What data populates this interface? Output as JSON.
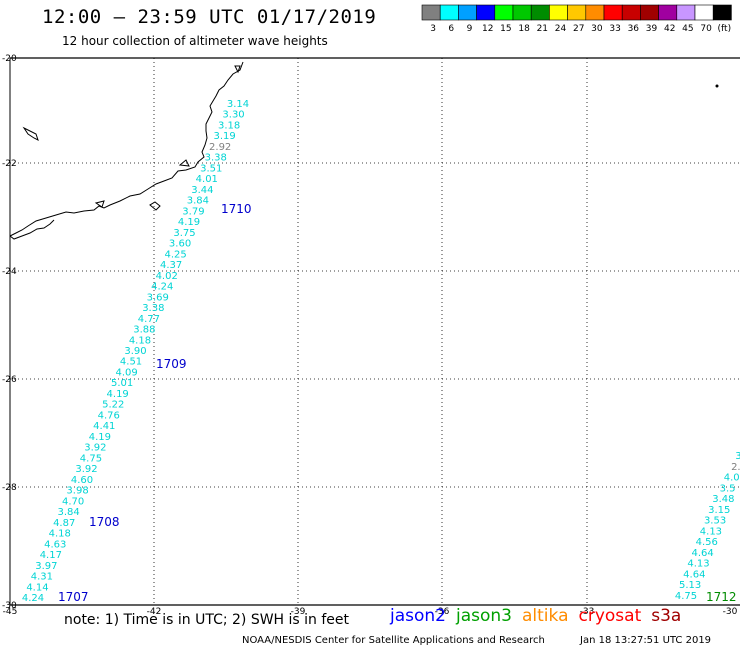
{
  "header": {
    "title": "12:00 — 23:59 UTC 01/17/2019",
    "subtitle": "12 hour collection of altimeter wave heights"
  },
  "legend": {
    "colors": [
      "#808080",
      "#00ffff",
      "#00a0ff",
      "#0000ff",
      "#00ff00",
      "#00c800",
      "#008c00",
      "#ffff00",
      "#ffc800",
      "#ff8c00",
      "#ff0000",
      "#c80000",
      "#a00000",
      "#a000a0",
      "#c896ff",
      "#ffffff",
      "#000000"
    ],
    "labels": [
      "3",
      "6",
      "9",
      "12",
      "15",
      "18",
      "21",
      "24",
      "27",
      "30",
      "33",
      "36",
      "39",
      "42",
      "45",
      "70",
      "(ft)"
    ]
  },
  "axes": {
    "lat_labels": [
      "-20",
      "-22",
      "-24",
      "-26",
      "-28",
      "-30"
    ],
    "lon_labels": [
      "-45",
      "-42",
      "-39",
      "-36",
      "-33",
      "-30"
    ]
  },
  "tracks": [
    {
      "name": "main-track",
      "color": "#00d4d4",
      "values": [
        "3.14",
        "3.30",
        "3.18",
        "3.19",
        "2.92",
        "3.38",
        "3.51",
        "4.01",
        "3.44",
        "3.84",
        "3.79",
        "4.19",
        "3.75",
        "3.60",
        "4.25",
        "4.37",
        "4.02",
        "4.24",
        "3.69",
        "3.38",
        "4.77",
        "3.88",
        "4.18",
        "3.90",
        "4.51",
        "4.09",
        "5.01",
        "4.19",
        "5.22",
        "4.76",
        "4.41",
        "4.19",
        "3.92",
        "4.75",
        "3.92",
        "4.60",
        "3.98",
        "4.70",
        "3.84",
        "4.87",
        "4.18",
        "4.63",
        "4.17",
        "3.97",
        "4.31",
        "4.14",
        "4.24"
      ]
    },
    {
      "name": "right-track",
      "color": "#00d4d4",
      "values": [
        "3.",
        "2.",
        "4.0",
        "3.5",
        "3.48",
        "3.15",
        "3.53",
        "4.13",
        "4.56",
        "4.64",
        "4.13",
        "4.64",
        "5.13",
        "4.75"
      ]
    }
  ],
  "pass_labels": [
    {
      "text": "1710",
      "color": "#0000cc"
    },
    {
      "text": "1709",
      "color": "#0000cc"
    },
    {
      "text": "1708",
      "color": "#0000cc"
    },
    {
      "text": "1707",
      "color": "#0000cc"
    },
    {
      "text": "1712",
      "color": "#008c00"
    }
  ],
  "footer": {
    "note": "note:  1) Time is in UTC;  2) SWH is in feet",
    "satellites": [
      {
        "name": "jason2",
        "color": "#0000ff"
      },
      {
        "name": "jason3",
        "color": "#00a000"
      },
      {
        "name": "altika",
        "color": "#ff8c00"
      },
      {
        "name": "cryosat",
        "color": "#ff0000"
      },
      {
        "name": "s3a",
        "color": "#a00000"
      }
    ],
    "credit": "NOAA/NESDIS Center for Satellite Applications and Research",
    "timestamp": "Jan 18 13:27:51 UTC 2019"
  }
}
